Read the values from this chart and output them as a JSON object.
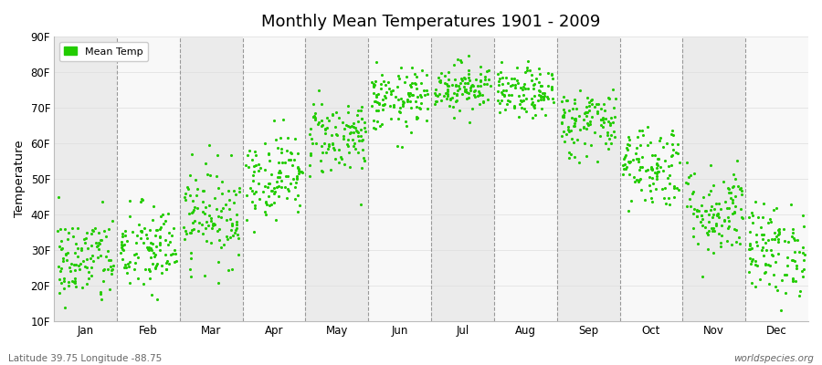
{
  "title": "Monthly Mean Temperatures 1901 - 2009",
  "ylabel": "Temperature",
  "xlabel_labels": [
    "Jan",
    "Feb",
    "Mar",
    "Apr",
    "May",
    "Jun",
    "Jul",
    "Aug",
    "Sep",
    "Oct",
    "Nov",
    "Dec"
  ],
  "ytick_labels": [
    "10F",
    "20F",
    "30F",
    "40F",
    "50F",
    "60F",
    "70F",
    "80F",
    "90F"
  ],
  "ytick_values": [
    10,
    20,
    30,
    40,
    50,
    60,
    70,
    80,
    90
  ],
  "ylim": [
    10,
    90
  ],
  "legend_label": "Mean Temp",
  "dot_color": "#22cc00",
  "bg_color": "#ffffff",
  "plot_bg_color": "#ffffff",
  "band_color_even": "#ebebeb",
  "band_color_odd": "#f8f8f8",
  "vline_color": "#999999",
  "footer_left": "Latitude 39.75 Longitude -88.75",
  "footer_right": "worldspecies.org",
  "monthly_means": [
    27,
    30,
    40,
    51,
    62,
    72,
    76,
    74,
    66,
    54,
    41,
    30
  ],
  "monthly_stds": [
    6.5,
    6.5,
    7,
    6,
    5.5,
    4.5,
    3.5,
    3.5,
    5,
    6,
    6.5,
    6.5
  ],
  "n_years": 109,
  "seed": 42
}
